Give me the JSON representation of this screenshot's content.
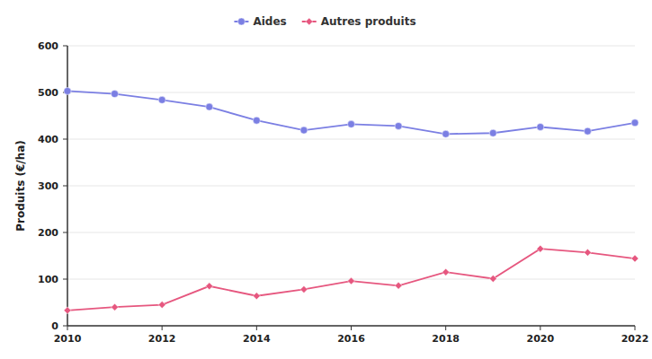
{
  "chart_data": {
    "type": "line",
    "y_label": "Produits (€/ha)",
    "x": [
      2010,
      2011,
      2012,
      2013,
      2014,
      2015,
      2016,
      2017,
      2018,
      2019,
      2020,
      2021,
      2022
    ],
    "series": [
      {
        "name": "Aides",
        "color": "#7b7fe3",
        "marker": "circle",
        "values": [
          503,
          497,
          484,
          469,
          440,
          419,
          432,
          428,
          411,
          413,
          426,
          417,
          435
        ]
      },
      {
        "name": "Autres produits",
        "color": "#e6577f",
        "marker": "diamond",
        "values": [
          33,
          40,
          45,
          85,
          64,
          78,
          96,
          86,
          115,
          101,
          165,
          157,
          144
        ]
      }
    ],
    "xlim": [
      2010,
      2022
    ],
    "xticks": [
      2010,
      2012,
      2014,
      2016,
      2018,
      2020,
      2022
    ],
    "ylim": [
      0,
      600
    ],
    "yticks": [
      0,
      100,
      200,
      300,
      400,
      500,
      600
    ],
    "grid": true,
    "legend": "top"
  }
}
